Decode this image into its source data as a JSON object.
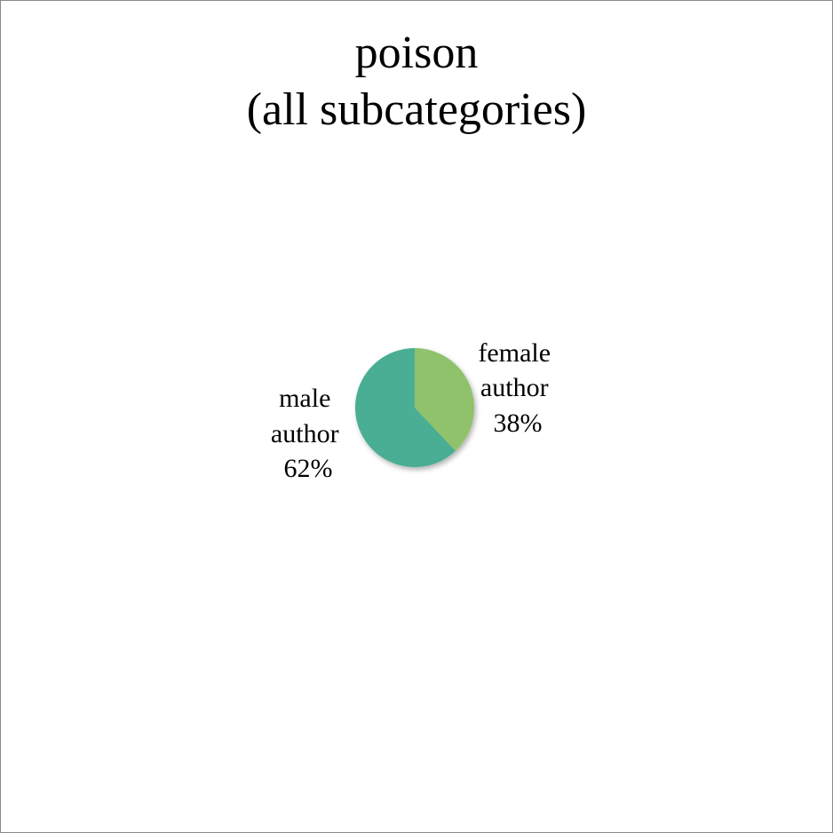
{
  "chart_data": {
    "type": "pie",
    "title_lines": [
      "poison",
      "(all subcategories)"
    ],
    "slices": [
      {
        "label_lines": [
          "female",
          "author",
          "38%"
        ],
        "value": 38,
        "color": "#8fc26a"
      },
      {
        "label_lines": [
          "male",
          "author",
          "62%"
        ],
        "value": 62,
        "color": "#4aae93"
      }
    ],
    "start_angle": "12 o'clock",
    "direction": "clockwise"
  }
}
